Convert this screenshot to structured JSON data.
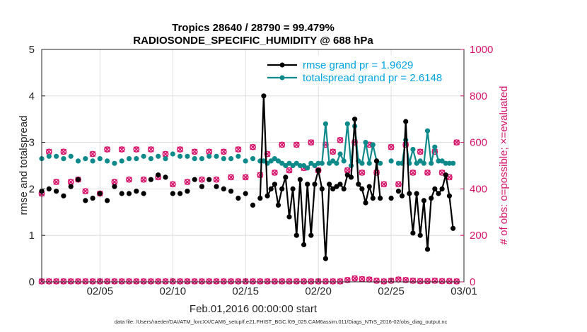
{
  "chart_data": {
    "type": "line",
    "title_line1": "Tropics 28640 / 28790 = 99.479%",
    "title_line2": "RADIOSONDE_SPECIFIC_HUMIDITY @ 688 hPa",
    "xlabel": "Feb.01,2016 00:00:00 start",
    "ylabel_left": "rmse and totalspread",
    "ylabel_right": "# of obs: o=possible; ×=evaluated",
    "xlim": [
      1,
      30
    ],
    "ylim_left": [
      0,
      5
    ],
    "ylim_right": [
      0,
      1000
    ],
    "x_ticks": [
      5,
      10,
      15,
      20,
      25,
      30
    ],
    "x_tick_labels": [
      "02/05",
      "02/10",
      "02/15",
      "02/20",
      "02/25",
      "03/01"
    ],
    "y_left_ticks": [
      "0",
      "1",
      "2",
      "3",
      "4",
      "5"
    ],
    "y_right_ticks": [
      "0",
      "200",
      "400",
      "600",
      "800",
      "1000"
    ],
    "legend": [
      "rmse grand pr = 1.9629",
      "totalspread grand pr = 2.6148"
    ],
    "colors": {
      "rmse": "#000000",
      "spread": "#0f8a8a",
      "obs": "#d6136b",
      "legend_text": "#00a5e0"
    },
    "footnote": "data file: /Users/raeder/DAI/ATM_forcXX/CAM6_setup/f.e21.FHIST_BGC.f09_025.CAM6assim.011/Diags_NTrS_2016-02/obs_diag_output.nc",
    "series": [
      {
        "name": "rmse",
        "connected": [
          [
            16.0,
            1.8
          ],
          [
            16.25,
            4.0
          ],
          [
            16.5,
            1.85
          ],
          [
            16.75,
            2.0
          ],
          [
            17.0,
            2.1
          ],
          [
            17.25,
            1.65
          ],
          [
            17.5,
            2.0
          ],
          [
            17.75,
            2.25
          ],
          [
            18.0,
            1.4
          ],
          [
            18.25,
            2.0
          ],
          [
            18.5,
            1.0
          ],
          [
            18.75,
            2.2
          ],
          [
            19.0,
            0.8
          ],
          [
            19.25,
            2.1
          ],
          [
            19.5,
            1.0
          ],
          [
            19.75,
            2.1
          ],
          [
            20.0,
            2.4
          ],
          [
            20.25,
            2.0
          ],
          [
            20.5,
            0.5
          ],
          [
            20.75,
            2.1
          ],
          [
            21.0,
            2.0
          ],
          [
            21.25,
            2.05
          ],
          [
            21.5,
            2.1
          ],
          [
            21.75,
            2.0
          ],
          [
            22.0,
            2.3
          ],
          [
            22.25,
            2.25
          ],
          [
            22.5,
            3.5
          ],
          [
            22.75,
            2.1
          ],
          [
            23.0,
            2.0
          ],
          [
            23.25,
            1.7
          ],
          [
            23.5,
            2.05
          ],
          [
            23.75,
            1.8
          ],
          [
            24.0,
            2.6
          ],
          [
            24.25,
            1.8
          ]
        ],
        "isolated": [
          [
            1.0,
            1.95
          ],
          [
            1.5,
            2.0
          ],
          [
            2.0,
            1.95
          ],
          [
            2.5,
            1.85
          ],
          [
            3.0,
            2.05
          ],
          [
            3.5,
            2.2
          ],
          [
            4.0,
            1.75
          ],
          [
            4.5,
            1.8
          ],
          [
            5.0,
            1.9
          ],
          [
            5.5,
            1.75
          ],
          [
            6.0,
            2.05
          ],
          [
            6.5,
            1.9
          ],
          [
            7.0,
            1.9
          ],
          [
            7.5,
            1.95
          ],
          [
            8.0,
            1.9
          ],
          [
            8.5,
            2.2
          ],
          [
            9.0,
            2.3
          ],
          [
            9.5,
            2.25
          ],
          [
            10.0,
            1.9
          ],
          [
            10.5,
            1.9
          ],
          [
            11.0,
            1.95
          ],
          [
            11.5,
            2.2
          ],
          [
            12.0,
            2.05
          ],
          [
            12.5,
            2.2
          ],
          [
            13.0,
            2.05
          ],
          [
            13.5,
            2.0
          ],
          [
            14.0,
            1.95
          ],
          [
            14.5,
            1.8
          ],
          [
            15.0,
            1.9
          ],
          [
            15.5,
            1.65
          ],
          [
            25.0,
            1.8
          ],
          [
            25.5,
            1.95
          ]
        ],
        "connected2": [
          [
            25.75,
            1.85
          ],
          [
            26.0,
            3.45
          ],
          [
            26.25,
            1.9
          ],
          [
            26.5,
            1.05
          ],
          [
            26.75,
            1.9
          ],
          [
            27.0,
            1.0
          ],
          [
            27.25,
            1.75
          ],
          [
            27.5,
            0.7
          ],
          [
            27.75,
            1.8
          ],
          [
            28.0,
            2.0
          ],
          [
            28.25,
            1.9
          ],
          [
            28.5,
            2.0
          ],
          [
            28.75,
            2.3
          ],
          [
            29.0,
            1.85
          ],
          [
            29.25,
            1.15
          ]
        ]
      },
      {
        "name": "totalspread",
        "connected": [
          [
            16.0,
            2.6
          ],
          [
            16.25,
            2.6
          ],
          [
            16.5,
            2.55
          ],
          [
            16.75,
            2.6
          ],
          [
            17.0,
            2.65
          ],
          [
            17.25,
            2.6
          ],
          [
            17.5,
            2.55
          ],
          [
            17.75,
            2.5
          ],
          [
            18.0,
            2.55
          ],
          [
            18.25,
            2.5
          ],
          [
            18.5,
            2.55
          ],
          [
            18.75,
            2.5
          ],
          [
            19.0,
            2.5
          ],
          [
            19.25,
            2.45
          ],
          [
            19.5,
            2.55
          ],
          [
            19.75,
            2.5
          ],
          [
            20.0,
            2.55
          ],
          [
            20.25,
            2.55
          ],
          [
            20.5,
            3.4
          ],
          [
            20.75,
            2.55
          ],
          [
            21.0,
            2.6
          ],
          [
            21.25,
            2.55
          ],
          [
            21.5,
            2.75
          ],
          [
            21.75,
            2.6
          ],
          [
            22.0,
            3.4
          ],
          [
            22.25,
            2.5
          ],
          [
            22.5,
            3.35
          ],
          [
            22.75,
            2.6
          ],
          [
            23.0,
            2.55
          ],
          [
            23.25,
            3.0
          ],
          [
            23.5,
            2.55
          ],
          [
            23.75,
            2.95
          ],
          [
            24.0,
            2.6
          ],
          [
            24.25,
            2.55
          ]
        ],
        "isolated": [
          [
            1.0,
            2.65
          ],
          [
            1.5,
            2.7
          ],
          [
            2.0,
            2.7
          ],
          [
            2.5,
            2.65
          ],
          [
            3.0,
            2.7
          ],
          [
            3.5,
            2.6
          ],
          [
            4.0,
            2.65
          ],
          [
            4.5,
            2.6
          ],
          [
            5.0,
            2.65
          ],
          [
            5.5,
            2.6
          ],
          [
            6.0,
            2.55
          ],
          [
            6.5,
            2.6
          ],
          [
            7.0,
            2.65
          ],
          [
            7.5,
            2.65
          ],
          [
            8.0,
            2.7
          ],
          [
            8.5,
            2.65
          ],
          [
            9.0,
            2.7
          ],
          [
            9.5,
            2.65
          ],
          [
            10.0,
            2.75
          ],
          [
            10.5,
            2.7
          ],
          [
            11.0,
            2.7
          ],
          [
            11.5,
            2.65
          ],
          [
            12.0,
            2.65
          ],
          [
            12.5,
            2.7
          ],
          [
            13.0,
            2.7
          ],
          [
            13.5,
            2.65
          ],
          [
            14.0,
            2.65
          ],
          [
            14.5,
            2.7
          ],
          [
            15.0,
            2.6
          ],
          [
            15.5,
            2.65
          ],
          [
            25.0,
            2.6
          ],
          [
            25.5,
            2.55
          ]
        ],
        "connected2": [
          [
            25.75,
            2.55
          ],
          [
            26.0,
            3.05
          ],
          [
            26.25,
            2.55
          ],
          [
            26.5,
            2.85
          ],
          [
            26.75,
            2.55
          ],
          [
            27.0,
            2.6
          ],
          [
            27.25,
            2.55
          ],
          [
            27.5,
            3.25
          ],
          [
            27.75,
            2.55
          ],
          [
            28.0,
            2.9
          ],
          [
            28.25,
            2.6
          ],
          [
            28.5,
            2.6
          ],
          [
            28.75,
            2.55
          ],
          [
            29.0,
            2.55
          ],
          [
            29.25,
            2.55
          ]
        ]
      },
      {
        "name": "obs_possible",
        "axis": "right",
        "points": [
          [
            1.0,
            380
          ],
          [
            1.5,
            560
          ],
          [
            2.0,
            430
          ],
          [
            2.5,
            560
          ],
          [
            3.0,
            430
          ],
          [
            3.5,
            440
          ],
          [
            4.0,
            390
          ],
          [
            4.5,
            550
          ],
          [
            5.0,
            380
          ],
          [
            5.5,
            570
          ],
          [
            6.0,
            430
          ],
          [
            6.5,
            570
          ],
          [
            7.0,
            440
          ],
          [
            7.5,
            570
          ],
          [
            8.0,
            440
          ],
          [
            8.5,
            570
          ],
          [
            9.0,
            450
          ],
          [
            9.5,
            550
          ],
          [
            10.0,
            420
          ],
          [
            10.5,
            570
          ],
          [
            11.0,
            430
          ],
          [
            11.5,
            560
          ],
          [
            12.0,
            440
          ],
          [
            12.5,
            560
          ],
          [
            13.0,
            440
          ],
          [
            13.5,
            560
          ],
          [
            14.0,
            450
          ],
          [
            14.5,
            570
          ],
          [
            15.0,
            450
          ],
          [
            15.5,
            580
          ],
          [
            16.0,
            460
          ],
          [
            16.5,
            550
          ],
          [
            17.0,
            470
          ],
          [
            17.5,
            590
          ],
          [
            18.0,
            480
          ],
          [
            18.5,
            590
          ],
          [
            19.0,
            490
          ],
          [
            19.5,
            600
          ],
          [
            20.0,
            480
          ],
          [
            20.5,
            590
          ],
          [
            21.0,
            560
          ],
          [
            21.5,
            610
          ],
          [
            22.0,
            480
          ],
          [
            22.5,
            600
          ],
          [
            23.0,
            470
          ],
          [
            23.5,
            590
          ],
          [
            24.0,
            470
          ],
          [
            24.5,
            420
          ],
          [
            25.0,
            580
          ],
          [
            25.5,
            420
          ],
          [
            26.0,
            590
          ],
          [
            26.5,
            470
          ],
          [
            27.0,
            560
          ],
          [
            27.5,
            470
          ],
          [
            28.0,
            560
          ],
          [
            28.5,
            470
          ],
          [
            29.0,
            450
          ],
          [
            29.5,
            600
          ]
        ]
      },
      {
        "name": "obs_evaluated",
        "axis": "right",
        "points": [
          [
            1.0,
            2
          ],
          [
            1.5,
            2
          ],
          [
            2.0,
            2
          ],
          [
            2.5,
            2
          ],
          [
            3.0,
            2
          ],
          [
            3.5,
            2
          ],
          [
            4.0,
            2
          ],
          [
            4.5,
            2
          ],
          [
            5.0,
            2
          ],
          [
            5.5,
            2
          ],
          [
            6.0,
            2
          ],
          [
            6.5,
            2
          ],
          [
            7.0,
            2
          ],
          [
            7.5,
            2
          ],
          [
            8.0,
            2
          ],
          [
            8.5,
            2
          ],
          [
            9.0,
            2
          ],
          [
            9.5,
            2
          ],
          [
            10.0,
            2
          ],
          [
            10.5,
            2
          ],
          [
            11.0,
            2
          ],
          [
            11.5,
            2
          ],
          [
            12.0,
            2
          ],
          [
            12.5,
            2
          ],
          [
            13.0,
            2
          ],
          [
            13.5,
            2
          ],
          [
            14.0,
            2
          ],
          [
            14.5,
            2
          ],
          [
            15.0,
            2
          ],
          [
            15.5,
            2
          ],
          [
            16.0,
            2
          ],
          [
            16.5,
            2
          ],
          [
            17.0,
            2
          ],
          [
            17.5,
            2
          ],
          [
            18.0,
            2
          ],
          [
            18.5,
            2
          ],
          [
            19.0,
            2
          ],
          [
            19.5,
            2
          ],
          [
            20.0,
            2
          ],
          [
            20.5,
            2
          ],
          [
            21.0,
            2
          ],
          [
            21.5,
            2
          ],
          [
            22.0,
            8
          ],
          [
            22.5,
            15
          ],
          [
            23.0,
            12
          ],
          [
            23.5,
            10
          ],
          [
            24.0,
            5
          ],
          [
            24.5,
            2
          ],
          [
            25.0,
            5
          ],
          [
            25.5,
            10
          ],
          [
            26.0,
            8
          ],
          [
            26.5,
            5
          ],
          [
            27.0,
            3
          ],
          [
            27.5,
            3
          ],
          [
            28.0,
            5
          ],
          [
            28.5,
            3
          ],
          [
            29.0,
            3
          ],
          [
            29.5,
            2
          ]
        ]
      }
    ]
  }
}
